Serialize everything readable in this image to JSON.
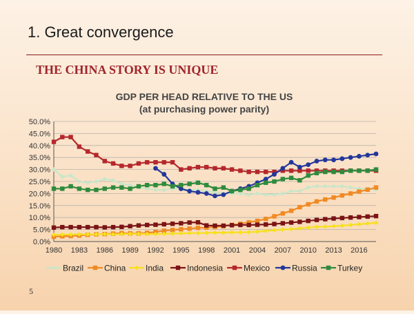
{
  "slide": {
    "title": "1. Great convergence",
    "subtitle": "THE CHINA STORY IS UNIQUE",
    "page_number": "5"
  },
  "chart_data": {
    "type": "line",
    "title": "GDP PER HEAD RELATIVE TO THE US",
    "subtitle": "(at purchasing power parity)",
    "xlabel": "",
    "ylabel": "",
    "ylim": [
      0,
      50
    ],
    "yticks": [
      0,
      5,
      10,
      15,
      20,
      25,
      30,
      35,
      40,
      45,
      50
    ],
    "ytick_labels": [
      "0.0%",
      "5.0%",
      "10.0%",
      "15.0%",
      "20.0%",
      "25.0%",
      "30.0%",
      "35.0%",
      "40.0%",
      "45.0%",
      "50.0%"
    ],
    "xlim": [
      1980,
      2018
    ],
    "xticks": [
      1980,
      1983,
      1986,
      1989,
      1992,
      1995,
      1998,
      2001,
      2004,
      2007,
      2010,
      2013,
      2016
    ],
    "xtick_labels": [
      "1980",
      "1983",
      "1986",
      "1989",
      "1992",
      "1995",
      "1998",
      "2001",
      "2004",
      "2007",
      "2010",
      "2013",
      "2016"
    ],
    "grid": true,
    "legend": "bottom",
    "series": [
      {
        "name": "Brazil",
        "color": "#c8e6c9",
        "start": 1980,
        "values": [
          30,
          27,
          27.5,
          25,
          24.5,
          25,
          26,
          25.5,
          24,
          23.5,
          22.5,
          22,
          21.5,
          21.5,
          22,
          22,
          21.5,
          21.5,
          21,
          20.5,
          20,
          20,
          20,
          19.5,
          20,
          19.5,
          19.5,
          20,
          21,
          21,
          22.5,
          23,
          23,
          23,
          23,
          22.5,
          22,
          22,
          21.5
        ]
      },
      {
        "name": "China",
        "color": "#f08a24",
        "start": 1980,
        "values": [
          2,
          2.2,
          2.3,
          2.5,
          2.8,
          3,
          3.1,
          3.3,
          3.5,
          3.4,
          3.4,
          3.6,
          4,
          4.5,
          4.8,
          5.1,
          5.4,
          5.7,
          5.8,
          6.1,
          6.4,
          6.9,
          7.4,
          8,
          8.6,
          9.4,
          10.5,
          11.7,
          12.8,
          14.3,
          15.5,
          16.7,
          17.5,
          18.3,
          19.2,
          20,
          20.8,
          21.6,
          22.5
        ]
      },
      {
        "name": "India",
        "color": "#f7e01e",
        "start": 1980,
        "values": [
          2.8,
          2.9,
          2.9,
          3,
          3,
          3,
          3.1,
          3,
          3.1,
          3.2,
          3.2,
          3.1,
          3.1,
          3.2,
          3.3,
          3.4,
          3.5,
          3.5,
          3.6,
          3.7,
          3.7,
          3.8,
          3.8,
          3.9,
          4.1,
          4.4,
          4.7,
          5,
          5.2,
          5.5,
          5.8,
          6.1,
          6.2,
          6.4,
          6.6,
          6.9,
          7.2,
          7.5,
          7.8
        ]
      },
      {
        "name": "Indonesia",
        "color": "#7a1416",
        "start": 1980,
        "values": [
          5.8,
          6,
          6,
          6,
          6,
          6,
          5.9,
          6,
          6.1,
          6.4,
          6.7,
          6.9,
          7,
          7.2,
          7.4,
          7.6,
          7.9,
          8,
          6.7,
          6.6,
          6.6,
          6.8,
          6.9,
          6.9,
          7,
          7.1,
          7.3,
          7.6,
          7.9,
          8.2,
          8.6,
          9,
          9.3,
          9.6,
          9.8,
          10,
          10.2,
          10.4,
          10.6
        ]
      },
      {
        "name": "Mexico",
        "color": "#b5282b",
        "start": 1980,
        "values": [
          41.5,
          43.5,
          43.5,
          39.5,
          37.5,
          36,
          33.5,
          32.5,
          31.5,
          31.5,
          32.5,
          33,
          33,
          33,
          33,
          30,
          30.5,
          31,
          31,
          30.5,
          30.5,
          30,
          29.5,
          29,
          29,
          29,
          29,
          29.5,
          29.5,
          29.5,
          29.5,
          29.5,
          29.5,
          29.5,
          29.5,
          29.5,
          29.5,
          29.5,
          29.5
        ]
      },
      {
        "name": "Russia",
        "color": "#23379a",
        "start": 1992,
        "values": [
          30.5,
          28,
          24,
          22,
          21,
          20.5,
          20,
          19,
          19.5,
          21,
          22,
          23,
          24.5,
          26,
          28,
          30.5,
          33,
          31,
          32,
          33.5,
          34,
          34,
          34.5,
          35,
          35.5,
          36,
          36.5
        ]
      },
      {
        "name": "Turkey",
        "color": "#2e8b3d",
        "start": 1980,
        "values": [
          22,
          22,
          23,
          22,
          21.5,
          21.5,
          22,
          22.5,
          22.5,
          22,
          23,
          23.5,
          23.5,
          24,
          23,
          23.5,
          24,
          24.5,
          23.5,
          22,
          22.5,
          21,
          21.5,
          22,
          23.5,
          24.5,
          25,
          26,
          26.5,
          25.5,
          27.5,
          28.5,
          29,
          29,
          29,
          29.5,
          29.5,
          29.5,
          30
        ]
      }
    ]
  }
}
